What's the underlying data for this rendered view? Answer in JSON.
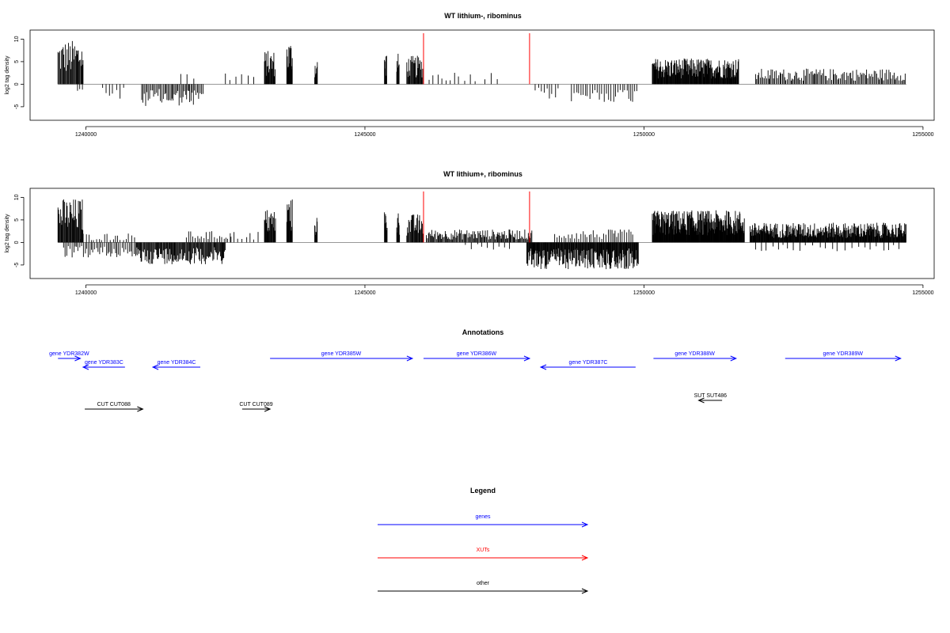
{
  "colors": {
    "genes": "#0000ff",
    "xuts": "#ff0000",
    "other": "#000000",
    "bars": "#000000",
    "frame": "#000000"
  },
  "chart_data": [
    {
      "type": "bar",
      "title": "WT lithium-, ribominus",
      "ylabel": "log2 tag density",
      "xlabel": "",
      "xlim": [
        1239000,
        1255200
      ],
      "ylim": [
        -8,
        12
      ],
      "xticks": [
        1240000,
        1245000,
        1250000,
        1255000
      ],
      "yticks": [
        -5,
        0,
        5,
        10
      ],
      "grid": false,
      "profile": [
        {
          "from": 1239500,
          "to": 1239950,
          "amp": 8.5,
          "sign": 1,
          "step": 14
        },
        {
          "from": 1239850,
          "to": 1239950,
          "amp": 1.5,
          "sign": -1,
          "step": 40
        },
        {
          "from": 1240300,
          "to": 1240700,
          "amp": 3,
          "sign": -1,
          "step": 60
        },
        {
          "from": 1241000,
          "to": 1242100,
          "amp": 4.2,
          "sign": -1,
          "step": 22
        },
        {
          "from": 1241700,
          "to": 1241950,
          "amp": 2.5,
          "sign": 1,
          "step": 110
        },
        {
          "from": 1242500,
          "to": 1243100,
          "amp": 2.5,
          "sign": 1,
          "step": 110
        },
        {
          "from": 1243200,
          "to": 1243400,
          "amp": 6.5,
          "sign": 1,
          "step": 10
        },
        {
          "from": 1243600,
          "to": 1243700,
          "amp": 8.5,
          "sign": 1,
          "step": 8
        },
        {
          "from": 1244100,
          "to": 1244150,
          "amp": 5,
          "sign": 1,
          "step": 8
        },
        {
          "from": 1245350,
          "to": 1245400,
          "amp": 6.5,
          "sign": 1,
          "step": 8
        },
        {
          "from": 1245570,
          "to": 1245620,
          "amp": 6,
          "sign": 1,
          "step": 8
        },
        {
          "from": 1245750,
          "to": 1246050,
          "amp": 5.5,
          "sign": 1,
          "step": 12
        },
        {
          "from": 1246150,
          "to": 1247000,
          "amp": 2.5,
          "sign": 1,
          "step": 90
        },
        {
          "from": 1247150,
          "to": 1247400,
          "amp": 2.5,
          "sign": 1,
          "step": 100
        },
        {
          "from": 1248050,
          "to": 1248500,
          "amp": 3,
          "sign": -1,
          "step": 55
        },
        {
          "from": 1248700,
          "to": 1249900,
          "amp": 3.5,
          "sign": -1,
          "step": 40
        },
        {
          "from": 1250150,
          "to": 1251700,
          "amp": 5,
          "sign": 1,
          "step": 9
        },
        {
          "from": 1252000,
          "to": 1254700,
          "amp": 3,
          "sign": 1,
          "step": 22
        }
      ],
      "xut_lines": [
        1246050,
        1247950
      ]
    },
    {
      "type": "bar",
      "title": "WT lithium+, ribominus",
      "ylabel": "log2 tag density",
      "xlabel": "",
      "xlim": [
        1239000,
        1255200
      ],
      "ylim": [
        -8,
        12
      ],
      "xticks": [
        1240000,
        1245000,
        1250000,
        1255000
      ],
      "yticks": [
        -5,
        0,
        5,
        10
      ],
      "grid": false,
      "profile": [
        {
          "from": 1239500,
          "to": 1239950,
          "amp": 8.5,
          "sign": 1,
          "step": 12
        },
        {
          "from": 1239600,
          "to": 1240900,
          "amp": 3,
          "sign": -1,
          "step": 30
        },
        {
          "from": 1239900,
          "to": 1240900,
          "amp": 1.8,
          "sign": 1,
          "step": 50
        },
        {
          "from": 1240900,
          "to": 1242500,
          "amp": 4.2,
          "sign": -1,
          "step": 14
        },
        {
          "from": 1241800,
          "to": 1242600,
          "amp": 2.2,
          "sign": 1,
          "step": 40
        },
        {
          "from": 1242600,
          "to": 1243100,
          "amp": 2.2,
          "sign": 1,
          "step": 70
        },
        {
          "from": 1243200,
          "to": 1243400,
          "amp": 6.5,
          "sign": 1,
          "step": 10
        },
        {
          "from": 1243600,
          "to": 1243700,
          "amp": 8.5,
          "sign": 1,
          "step": 8
        },
        {
          "from": 1244100,
          "to": 1244150,
          "amp": 5.5,
          "sign": 1,
          "step": 8
        },
        {
          "from": 1245350,
          "to": 1245400,
          "amp": 6.5,
          "sign": 1,
          "step": 8
        },
        {
          "from": 1245570,
          "to": 1245620,
          "amp": 6,
          "sign": 1,
          "step": 8
        },
        {
          "from": 1245750,
          "to": 1246050,
          "amp": 5.5,
          "sign": 1,
          "step": 12
        },
        {
          "from": 1246100,
          "to": 1248000,
          "amp": 2.5,
          "sign": 1,
          "step": 16
        },
        {
          "from": 1246800,
          "to": 1247600,
          "amp": 1.5,
          "sign": -1,
          "step": 90
        },
        {
          "from": 1247900,
          "to": 1249900,
          "amp": 5.2,
          "sign": -1,
          "step": 10
        },
        {
          "from": 1248400,
          "to": 1249800,
          "amp": 2.5,
          "sign": 1,
          "step": 35
        },
        {
          "from": 1250150,
          "to": 1251800,
          "amp": 6.2,
          "sign": 1,
          "step": 7
        },
        {
          "from": 1251900,
          "to": 1254700,
          "amp": 3.8,
          "sign": 1,
          "step": 9
        },
        {
          "from": 1252000,
          "to": 1254600,
          "amp": 1.8,
          "sign": -1,
          "step": 110
        }
      ],
      "xut_lines": [
        1246050,
        1247950
      ]
    }
  ],
  "annotations": {
    "title": "Annotations",
    "xlim": [
      1239000,
      1255200
    ],
    "features": [
      {
        "label": "gene YDR382W",
        "start": 1239500,
        "end": 1239900,
        "strand": "+",
        "kind": "genes",
        "row": 0
      },
      {
        "label": "gene YDR383C",
        "start": 1239950,
        "end": 1240700,
        "strand": "-",
        "kind": "genes",
        "row": 1
      },
      {
        "label": "gene YDR384C",
        "start": 1241200,
        "end": 1242050,
        "strand": "-",
        "kind": "genes",
        "row": 1
      },
      {
        "label": "gene YDR385W",
        "start": 1243300,
        "end": 1245850,
        "strand": "+",
        "kind": "genes",
        "row": 0
      },
      {
        "label": "gene YDR386W",
        "start": 1246050,
        "end": 1247950,
        "strand": "+",
        "kind": "genes",
        "row": 0
      },
      {
        "label": "gene YDR387C",
        "start": 1248150,
        "end": 1249850,
        "strand": "-",
        "kind": "genes",
        "row": 1
      },
      {
        "label": "gene YDR388W",
        "start": 1250170,
        "end": 1251650,
        "strand": "+",
        "kind": "genes",
        "row": 0
      },
      {
        "label": "gene YDR389W",
        "start": 1252530,
        "end": 1254600,
        "strand": "+",
        "kind": "genes",
        "row": 0
      },
      {
        "label": "CUT CUT088",
        "start": 1239980,
        "end": 1241020,
        "strand": "+",
        "kind": "other",
        "row": 3
      },
      {
        "label": "CUT CUT089",
        "start": 1242800,
        "end": 1243300,
        "strand": "+",
        "kind": "other",
        "row": 3
      },
      {
        "label": "SUT SUT486",
        "start": 1250980,
        "end": 1251400,
        "strand": "-",
        "kind": "other",
        "row": 2
      }
    ]
  },
  "legend": {
    "title": "Legend",
    "items": [
      {
        "label": "genes",
        "kind": "genes"
      },
      {
        "label": "XUTs",
        "kind": "xuts"
      },
      {
        "label": "other",
        "kind": "other"
      }
    ]
  }
}
